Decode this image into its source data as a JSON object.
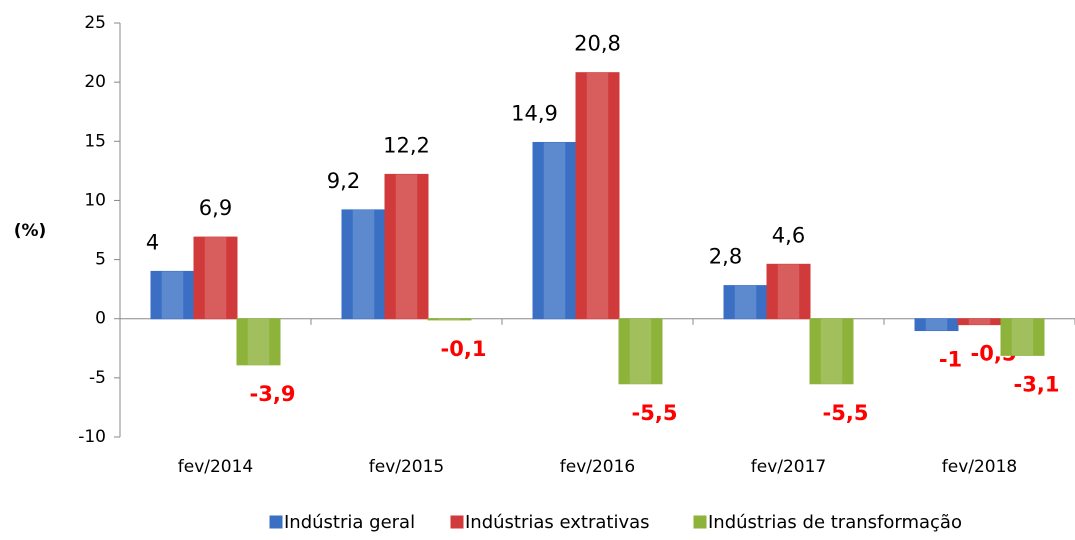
{
  "chart_data": {
    "type": "bar",
    "ylabel": "(%)",
    "categories": [
      "fev/2014",
      "fev/2015",
      "fev/2016",
      "fev/2017",
      "fev/2018"
    ],
    "series": [
      {
        "name": "Indústria geral",
        "color": "#3a6fc4",
        "values": [
          4,
          9.2,
          14.9,
          2.8,
          -1
        ],
        "value_labels": [
          "4",
          "9,2",
          "14,9",
          "2,8",
          "-1"
        ]
      },
      {
        "name": "Indústrias extrativas",
        "color": "#d03a3a",
        "values": [
          6.9,
          12.2,
          20.8,
          4.6,
          -0.5
        ],
        "value_labels": [
          "6,9",
          "12,2",
          "20,8",
          "4,6",
          "-0,5"
        ]
      },
      {
        "name": "Indústrias de transformação",
        "color": "#8db33a",
        "values": [
          -3.9,
          -0.1,
          -5.5,
          -5.5,
          -3.1
        ],
        "value_labels": [
          "-3,9",
          "-0,1",
          "-5,5",
          "-5,5",
          "-3,1"
        ]
      }
    ],
    "ylim": [
      -10,
      25
    ],
    "yticks": [
      -10,
      -5,
      0,
      5,
      10,
      15,
      20,
      25
    ],
    "grid": false
  }
}
